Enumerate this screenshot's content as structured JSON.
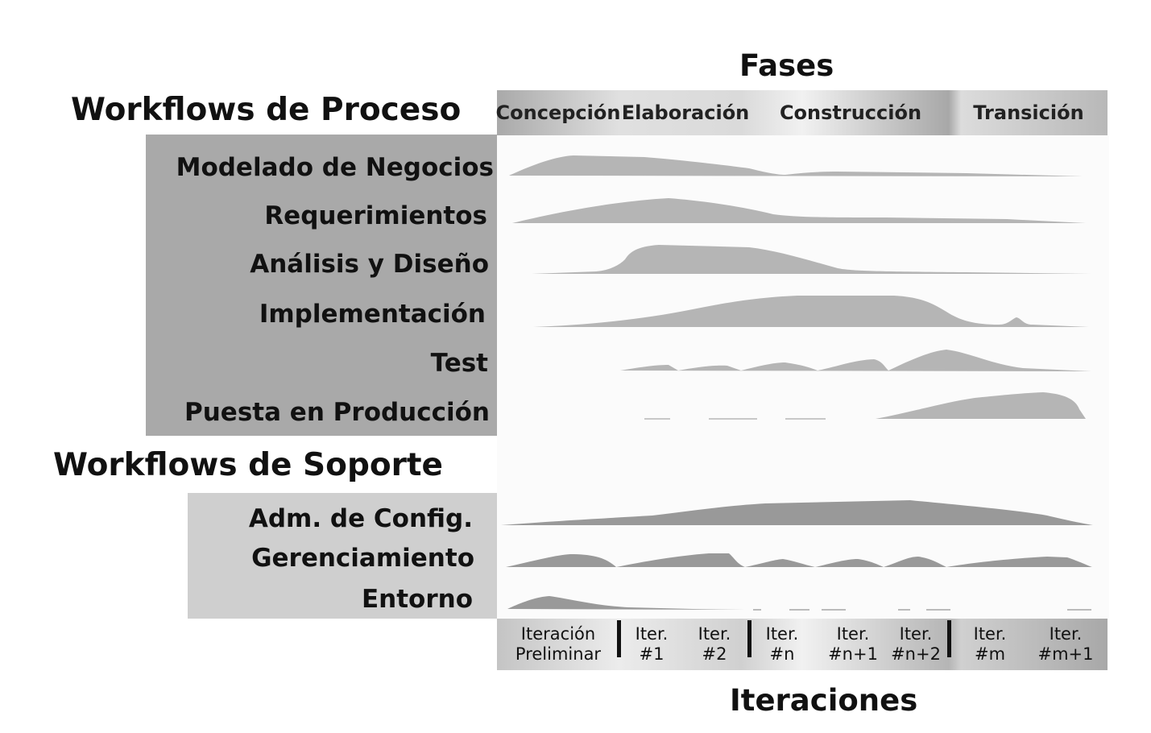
{
  "headers": {
    "phases_title": "Fases",
    "process_title": "Workflows de Proceso",
    "support_title": "Workflows de Soporte",
    "iterations_title": "Iteraciones"
  },
  "phases": [
    "Concepción",
    "Elaboración",
    "Construcción",
    "Transición"
  ],
  "process_workflows": [
    "Modelado de Negocios",
    "Requerimientos",
    "Análisis y Diseño",
    "Implementación",
    "Test",
    "Puesta en Producción"
  ],
  "support_workflows": [
    "Adm. de Config.",
    "Gerenciamiento",
    "Entorno"
  ],
  "iterations": [
    {
      "line1": "Iteración",
      "line2": "Preliminar"
    },
    {
      "line1": "Iter.",
      "line2": "#1"
    },
    {
      "line1": "Iter.",
      "line2": "#2"
    },
    {
      "line1": "Iter.",
      "line2": "#n"
    },
    {
      "line1": "Iter.",
      "line2": "#n+1"
    },
    {
      "line1": "Iter.",
      "line2": "#n+2"
    },
    {
      "line1": "Iter.",
      "line2": "#m"
    },
    {
      "line1": "Iter.",
      "line2": "#m+1"
    }
  ],
  "colors": {
    "process_panel": "#a9a9a9",
    "support_panel": "#cfcfcf",
    "hump_process": "#b5b5b5",
    "hump_support": "#999999"
  }
}
